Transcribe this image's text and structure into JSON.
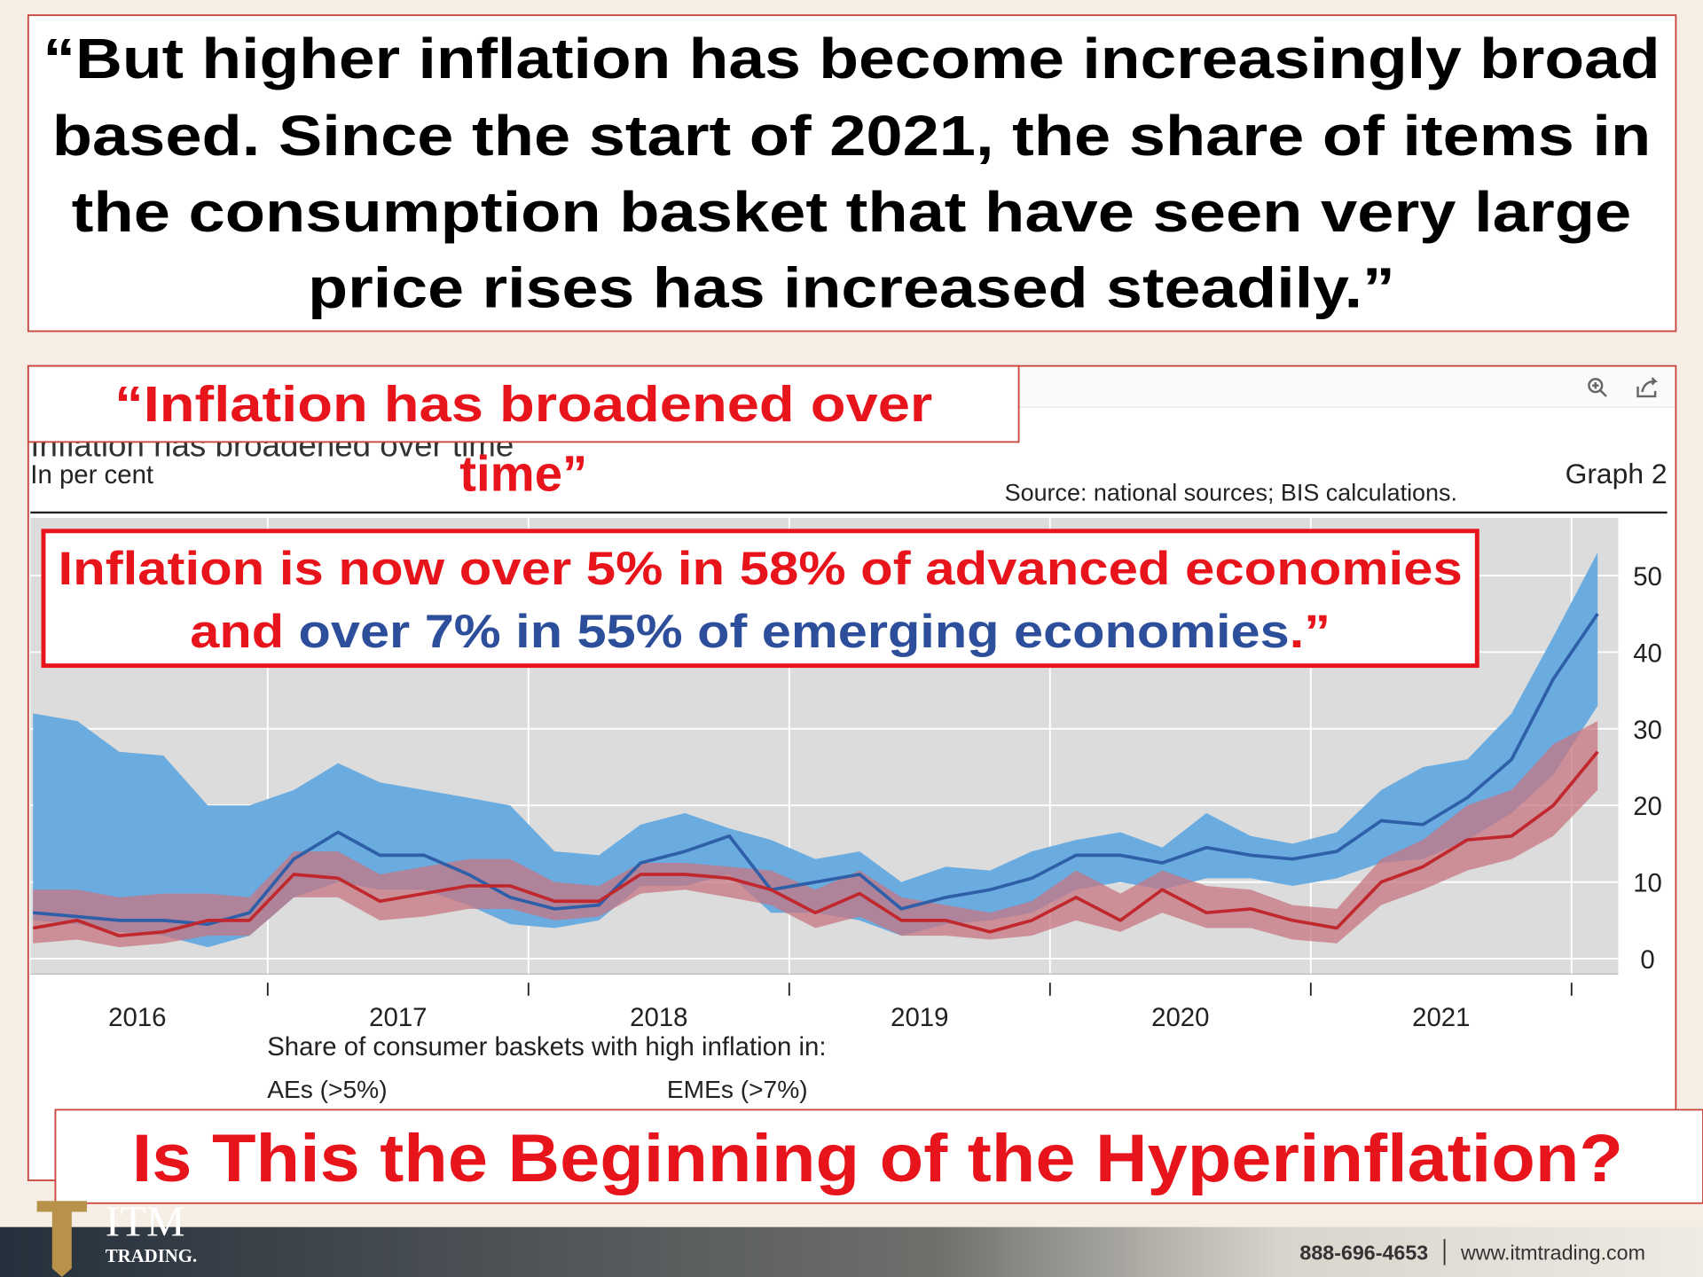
{
  "headline": [
    "“But higher inflation has become increasingly broad",
    "based. Since the start of 2021, the share of items in",
    "the consumption basket that have seen very large",
    "price rises has increased steadily.”"
  ],
  "callout_title": [
    "“Inflation has broadened over",
    "time”"
  ],
  "annotation": {
    "line1": "Inflation is now over 5% in 58% of advanced economies",
    "line2": [
      {
        "text": "and ",
        "color": "#e8141b"
      },
      {
        "text": "over 7% in 55% of emerging economies",
        "color": "#2d4f9b"
      },
      {
        "text": ".”",
        "color": "#e8141b"
      }
    ]
  },
  "question": "Is This the Beginning of the Hyperinflation?",
  "footer": {
    "brand": "ITM",
    "brand_sub": "TRADING.",
    "phone": "888-696-4653",
    "website": "www.itmtrading.com"
  },
  "chart_data": {
    "type": "line",
    "title": "Inflation has broadened over time",
    "subtitle": "In per cent",
    "source": "Source: national sources; BIS calculations.",
    "graph_label": "Graph 2",
    "legend_title": "Share of consumer baskets with high inflation in:",
    "x": [
      2016.1,
      2016.27,
      2016.43,
      2016.6,
      2016.77,
      2016.93,
      2017.1,
      2017.27,
      2017.43,
      2017.6,
      2017.77,
      2017.93,
      2018.1,
      2018.27,
      2018.43,
      2018.6,
      2018.77,
      2018.93,
      2019.1,
      2019.27,
      2019.43,
      2019.6,
      2019.77,
      2019.93,
      2020.1,
      2020.27,
      2020.43,
      2020.6,
      2020.77,
      2020.93,
      2021.1,
      2021.27,
      2021.43,
      2021.6,
      2021.77,
      2021.93,
      2022.1
    ],
    "xlim": [
      2016.09,
      2022.2
    ],
    "xticks": [
      {
        "value": 2016.5,
        "label": "2016"
      },
      {
        "value": 2017.5,
        "label": "2017"
      },
      {
        "value": 2018.5,
        "label": "2018"
      },
      {
        "value": 2019.5,
        "label": "2019"
      },
      {
        "value": 2020.5,
        "label": "2020"
      },
      {
        "value": 2021.5,
        "label": "2021"
      }
    ],
    "xtick_marks": [
      2017,
      2018,
      2019,
      2020,
      2021,
      2022
    ],
    "ylim": [
      -2,
      57.5
    ],
    "yticks": [
      0,
      10,
      20,
      30,
      40,
      50
    ],
    "grid": true,
    "series": [
      {
        "name": "EMEs (>7%)",
        "color": "#2e5fa8",
        "band_color": "#6aabe0",
        "values": [
          6,
          5.5,
          5,
          5,
          4.5,
          6,
          13,
          16.5,
          13.5,
          13.5,
          11,
          8,
          6.5,
          7,
          12.5,
          14,
          16,
          9,
          10,
          11,
          6.5,
          8,
          9,
          10.5,
          13.5,
          13.5,
          12.5,
          14.5,
          13.5,
          13,
          14,
          18,
          17.5,
          21,
          26,
          36.5,
          45
        ],
        "band_high": [
          32,
          31,
          27,
          26.5,
          20,
          20,
          22,
          25.5,
          23,
          22,
          21,
          20,
          14,
          13.5,
          17.5,
          19,
          17,
          15.5,
          13,
          14,
          10,
          12,
          11.5,
          14,
          15.5,
          16.5,
          14.5,
          19,
          16,
          15,
          16.5,
          22,
          25,
          26,
          32,
          42,
          53
        ],
        "band_low": [
          5,
          4.5,
          3.5,
          3,
          1.5,
          3,
          8,
          10,
          9,
          9,
          7,
          4.5,
          4,
          5,
          9.5,
          9.5,
          11,
          6,
          6,
          5,
          3,
          4.5,
          5,
          6,
          9,
          10,
          9,
          10.5,
          10.5,
          9.5,
          10.5,
          12.5,
          13,
          15.5,
          19,
          24,
          33
        ]
      },
      {
        "name": "AEs (>5%)",
        "color": "#c0282d",
        "band_color": "#c77582",
        "values": [
          4,
          5,
          3,
          3.5,
          5,
          5,
          11,
          10.5,
          7.5,
          8.5,
          9.5,
          9.5,
          7.5,
          7.5,
          11,
          11,
          10.5,
          9,
          6,
          8.5,
          5,
          5,
          3.5,
          5,
          8,
          5,
          9,
          6,
          6.5,
          5,
          4,
          10,
          12,
          15.5,
          16,
          20,
          27
        ],
        "band_high": [
          9,
          9,
          8,
          8.5,
          8.5,
          8,
          14,
          14,
          11,
          12,
          13,
          13,
          10,
          9.5,
          12.5,
          12.5,
          12,
          11.5,
          9,
          11.5,
          8,
          7,
          6,
          7.5,
          11.5,
          8.5,
          11.5,
          9.5,
          9,
          7,
          6.5,
          13,
          15.5,
          20,
          22,
          28,
          31
        ],
        "band_low": [
          2,
          2.5,
          1.5,
          2,
          3,
          3,
          8,
          8,
          5,
          5.5,
          6.5,
          6.5,
          5,
          5.5,
          8.5,
          9,
          8,
          7,
          4,
          5.5,
          3,
          3,
          2.5,
          3,
          5,
          3.5,
          6,
          4,
          4,
          2.5,
          2,
          7,
          9,
          11.5,
          13,
          16,
          22
        ]
      }
    ]
  }
}
